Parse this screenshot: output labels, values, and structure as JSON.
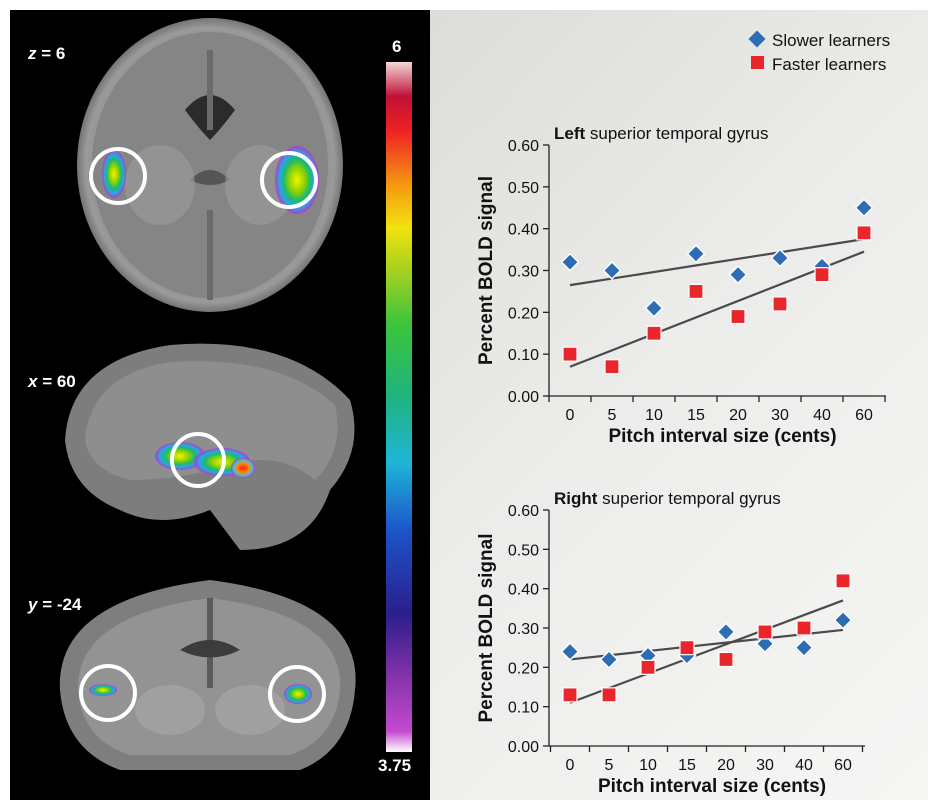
{
  "brain_panel": {
    "slices": [
      {
        "axis": "z",
        "value": "6"
      },
      {
        "axis": "x",
        "value": "60"
      },
      {
        "axis": "y",
        "value": "-24"
      }
    ],
    "colorbar": {
      "max_label": "6",
      "min_label": "3.75"
    }
  },
  "legend": {
    "placement": "top-right",
    "items": [
      {
        "label": "Slower learners",
        "marker": "diamond",
        "color": "#2e6db4"
      },
      {
        "label": "Faster learners",
        "marker": "square",
        "color": "#e8262c"
      }
    ]
  },
  "chart_data": [
    {
      "type": "scatter",
      "title_bold": "Left",
      "title_rest": " superior temporal gyrus",
      "xlabel": "Pitch interval size (cents)",
      "ylabel": "Percent BOLD signal",
      "categories": [
        "0",
        "5",
        "10",
        "15",
        "20",
        "30",
        "40",
        "60"
      ],
      "y_ticks": [
        "0.00",
        "0.10",
        "0.20",
        "0.30",
        "0.40",
        "0.50",
        "0.60"
      ],
      "ylim": [
        0,
        0.6
      ],
      "series": [
        {
          "name": "Slower learners",
          "color": "#2e6db4",
          "marker": "diamond",
          "values": [
            0.32,
            0.3,
            0.21,
            0.34,
            0.29,
            0.33,
            0.31,
            0.45
          ],
          "trend": [
            0.265,
            0.375
          ]
        },
        {
          "name": "Faster learners",
          "color": "#e8262c",
          "marker": "square",
          "values": [
            0.1,
            0.07,
            0.15,
            0.25,
            0.19,
            0.22,
            0.29,
            0.39
          ],
          "trend": [
            0.07,
            0.345
          ]
        }
      ]
    },
    {
      "type": "scatter",
      "title_bold": "Right",
      "title_rest": " superior temporal gyrus",
      "xlabel": "Pitch interval size (cents)",
      "ylabel": "Percent BOLD signal",
      "categories": [
        "0",
        "5",
        "10",
        "15",
        "20",
        "30",
        "40",
        "60"
      ],
      "y_ticks": [
        "0.00",
        "0.10",
        "0.20",
        "0.30",
        "0.40",
        "0.50",
        "0.60"
      ],
      "ylim": [
        0,
        0.6
      ],
      "series": [
        {
          "name": "Slower learners",
          "color": "#2e6db4",
          "marker": "diamond",
          "values": [
            0.24,
            0.22,
            0.23,
            0.23,
            0.29,
            0.26,
            0.25,
            0.32
          ],
          "trend": [
            0.22,
            0.295
          ]
        },
        {
          "name": "Faster learners",
          "color": "#e8262c",
          "marker": "square",
          "values": [
            0.13,
            0.13,
            0.2,
            0.25,
            0.22,
            0.29,
            0.3,
            0.42
          ],
          "trend": [
            0.11,
            0.37
          ]
        }
      ]
    }
  ]
}
